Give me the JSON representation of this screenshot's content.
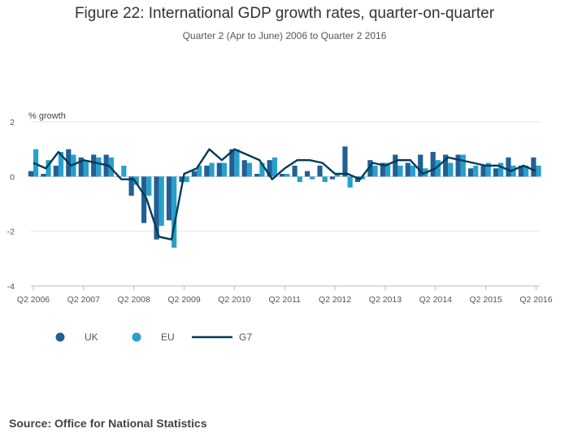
{
  "title": "Figure 22: International GDP growth rates, quarter-on-quarter",
  "subtitle": "Quarter 2 (Apr to June) 2006 to Quarter 2 2016",
  "source": "Source: Office for National Statistics",
  "colors": {
    "uk": "#206095",
    "eu": "#27a0cc",
    "g7": "#003c57",
    "grid": "#e4e4e4",
    "axis": "#bbbbbb"
  },
  "chart_data": {
    "type": "bar",
    "ylabel": "% growth",
    "ylim": [
      -4,
      2
    ],
    "yticks": [
      2,
      0,
      -2,
      -4
    ],
    "xtick_labels": [
      "Q2 2006",
      "Q2 2007",
      "Q2 2008",
      "Q2 2009",
      "Q2 2010",
      "Q2 2011",
      "Q2 2012",
      "Q2 2013",
      "Q2 2014",
      "Q2 2015",
      "Q2 2016"
    ],
    "categories": [
      "Q2 2006",
      "Q3 2006",
      "Q4 2006",
      "Q1 2007",
      "Q2 2007",
      "Q3 2007",
      "Q4 2007",
      "Q1 2008",
      "Q2 2008",
      "Q3 2008",
      "Q4 2008",
      "Q1 2009",
      "Q2 2009",
      "Q3 2009",
      "Q4 2009",
      "Q1 2010",
      "Q2 2010",
      "Q3 2010",
      "Q4 2010",
      "Q1 2011",
      "Q2 2011",
      "Q3 2011",
      "Q4 2011",
      "Q1 2012",
      "Q2 2012",
      "Q3 2012",
      "Q4 2012",
      "Q1 2013",
      "Q2 2013",
      "Q3 2013",
      "Q4 2013",
      "Q1 2014",
      "Q2 2014",
      "Q3 2014",
      "Q4 2014",
      "Q1 2015",
      "Q2 2015",
      "Q3 2015",
      "Q4 2015",
      "Q1 2016",
      "Q2 2016"
    ],
    "series": [
      {
        "name": "UK",
        "kind": "bar",
        "values": [
          0.2,
          0.1,
          0.4,
          1.0,
          0.7,
          0.8,
          0.8,
          0.0,
          -0.7,
          -1.7,
          -2.3,
          -1.6,
          -0.2,
          0.2,
          0.4,
          0.5,
          1.0,
          0.6,
          0.1,
          0.6,
          0.1,
          0.4,
          0.2,
          0.4,
          -0.1,
          1.1,
          -0.2,
          0.6,
          0.5,
          0.8,
          0.5,
          0.8,
          0.9,
          0.8,
          0.8,
          0.3,
          0.4,
          0.3,
          0.7,
          0.4,
          0.7
        ]
      },
      {
        "name": "EU",
        "kind": "bar",
        "values": [
          1.0,
          0.6,
          0.9,
          0.8,
          0.6,
          0.7,
          0.7,
          0.4,
          -0.3,
          -0.7,
          -1.8,
          -2.6,
          -0.2,
          0.4,
          0.5,
          0.5,
          1.0,
          0.5,
          0.5,
          0.7,
          0.1,
          -0.2,
          -0.1,
          -0.2,
          0.1,
          -0.4,
          -0.1,
          0.4,
          0.5,
          0.4,
          0.4,
          0.3,
          0.6,
          0.5,
          0.8,
          0.4,
          0.5,
          0.5,
          0.4,
          0.4,
          0.4
        ]
      },
      {
        "name": "G7",
        "kind": "line",
        "values": [
          0.5,
          0.3,
          0.9,
          0.4,
          0.6,
          0.5,
          0.4,
          -0.1,
          -0.1,
          -0.8,
          -2.2,
          -2.3,
          0.1,
          0.3,
          1.0,
          0.6,
          1.0,
          0.8,
          0.6,
          -0.1,
          0.3,
          0.6,
          0.6,
          0.5,
          0.1,
          0.1,
          -0.1,
          0.5,
          0.4,
          0.6,
          0.6,
          0.1,
          0.3,
          0.7,
          0.6,
          0.5,
          0.4,
          0.4,
          0.2,
          0.4,
          0.2
        ]
      }
    ],
    "legend": [
      {
        "name": "UK",
        "marker": "dot"
      },
      {
        "name": "EU",
        "marker": "dot"
      },
      {
        "name": "G7",
        "marker": "line"
      }
    ],
    "legend_position": "bottom-left"
  }
}
